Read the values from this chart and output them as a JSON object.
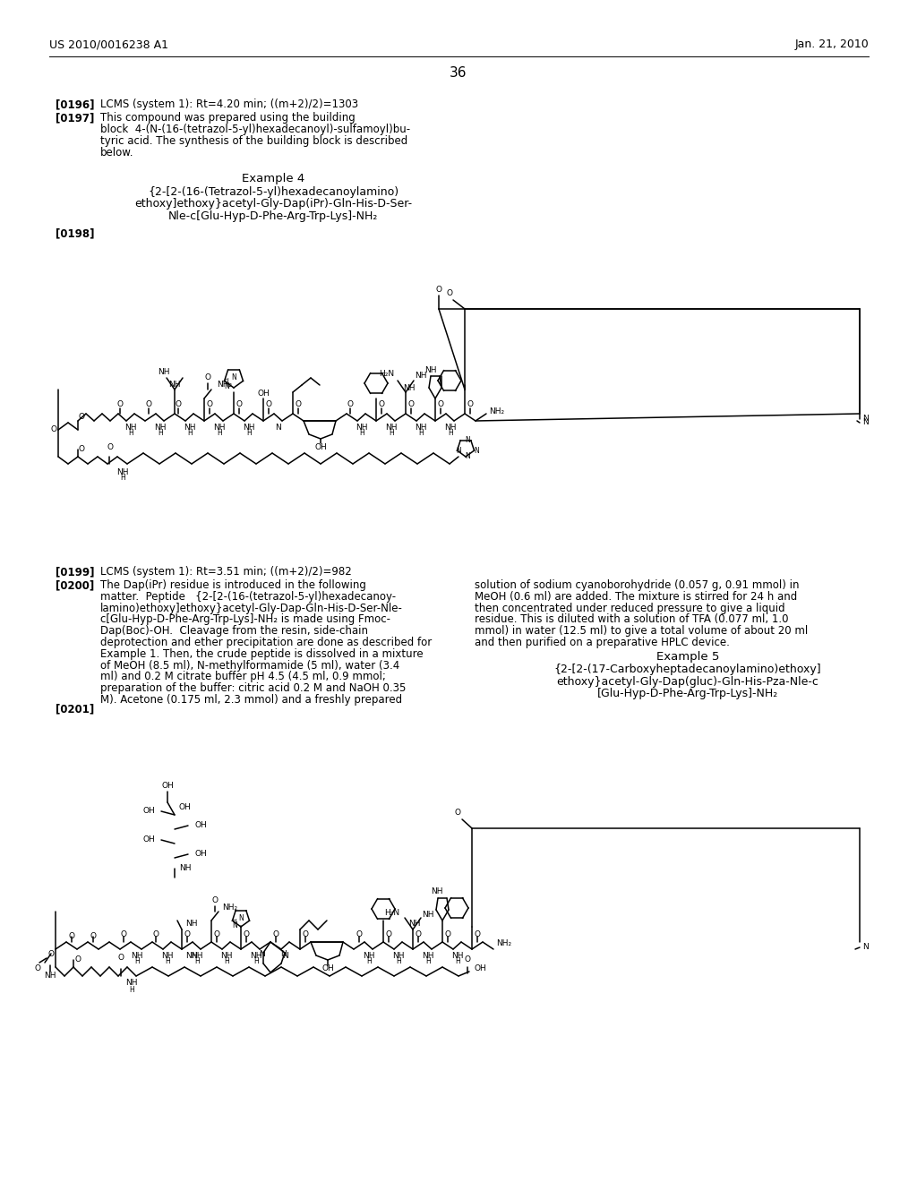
{
  "page_header_left": "US 2010/0016238 A1",
  "page_header_right": "Jan. 21, 2010",
  "page_number": "36",
  "bg": "#ffffff",
  "fg": "#000000",
  "para196_label": "[0196]",
  "para196_text": "LCMS (system 1): Rt=4.20 min; ((m+2)/2)=1303",
  "para197_label": "[0197]",
  "para197_lines": [
    "This compound was prepared using the building",
    "block  4-(N-(16-(tetrazol-5-yl)hexadecanoyl)-sulfamoyl)bu-",
    "tyric acid. The synthesis of the building block is described",
    "below."
  ],
  "example4_title": "Example 4",
  "example4_lines": [
    "{2-[2-(16-(Tetrazol-5-yl)hexadecanoylamino)",
    "ethoxy]ethoxy}acetyl-Gly-Dap(iPr)-Gln-His-D-Ser-",
    "Nle-c[Glu-Hyp-D-Phe-Arg-Trp-Lys]-NH₂"
  ],
  "para198_label": "[0198]",
  "para199_label": "[0199]",
  "para199_text": "LCMS (system 1): Rt=3.51 min; ((m+2)/2)=982",
  "para200_label": "[0200]",
  "para200_left": [
    "The Dap(iPr) residue is introduced in the following",
    "matter.  Peptide   {2-[2-(16-(tetrazol-5-yl)hexadecanoy-",
    "lamino)ethoxy]ethoxy}acetyl-Gly-Dap-Gln-His-D-Ser-Nle-",
    "c[Glu-Hyp-D-Phe-Arg-Trp-Lys]-NH₂ is made using Fmoc-",
    "Dap(Boc)-OH.  Cleavage from the resin, side-chain",
    "deprotection and ether precipitation are done as described for",
    "Example 1. Then, the crude peptide is dissolved in a mixture",
    "of MeOH (8.5 ml), N-methylformamide (5 ml), water (3.4",
    "ml) and 0.2 M citrate buffer pH 4.5 (4.5 ml, 0.9 mmol;",
    "preparation of the buffer: citric acid 0.2 M and NaOH 0.35",
    "M). Acetone (0.175 ml, 2.3 mmol) and a freshly prepared"
  ],
  "para200_right": [
    "solution of sodium cyanoborohydride (0.057 g, 0.91 mmol) in",
    "MeOH (0.6 ml) are added. The mixture is stirred for 24 h and",
    "then concentrated under reduced pressure to give a liquid",
    "residue. This is diluted with a solution of TFA (0.077 ml, 1.0",
    "mmol) in water (12.5 ml) to give a total volume of about 20 ml",
    "and then purified on a preparative HPLC device."
  ],
  "example5_title": "Example 5",
  "example5_lines": [
    "{2-[2-(17-Carboxyheptadecanoylamino)ethoxy]",
    "ethoxy}acetyl-Gly-Dap(gluc)-Gln-His-Pza-Nle-c",
    "[Glu-Hyp-D-Phe-Arg-Trp-Lys]-NH₂"
  ],
  "para201_label": "[0201]"
}
